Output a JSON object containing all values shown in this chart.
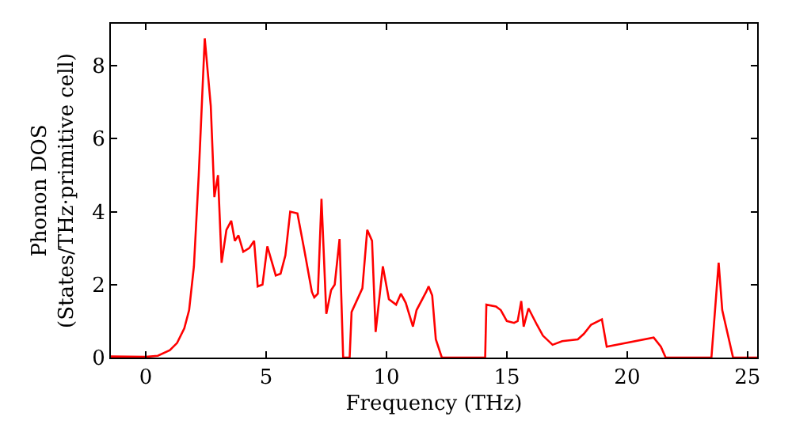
{
  "chart_data": {
    "type": "line",
    "xlabel": "Frequency (THz)",
    "ylabel": "Phonon DOS\n(States/THz·primitive cell)",
    "xlim": [
      -1.45,
      25.4
    ],
    "ylim": [
      0,
      9.15
    ],
    "xticks": [
      0,
      5,
      10,
      15,
      20,
      25
    ],
    "yticks": [
      0,
      2,
      4,
      6,
      8
    ],
    "marker": "none",
    "line_style": "solid",
    "series": [
      {
        "color": "#ff0000",
        "x": [
          -1.45,
          0,
          0.5,
          1,
          1.3,
          1.6,
          1.8,
          2.0,
          2.2,
          2.45,
          2.7,
          2.85,
          3.0,
          3.15,
          3.35,
          3.55,
          3.7,
          3.85,
          4.05,
          4.3,
          4.5,
          4.65,
          4.85,
          5.05,
          5.4,
          5.6,
          5.8,
          6.0,
          6.3,
          6.6,
          6.9,
          7.0,
          7.15,
          7.3,
          7.5,
          7.7,
          7.85,
          8.05,
          8.2,
          8.47,
          8.55,
          9.0,
          9.2,
          9.4,
          9.55,
          9.85,
          10.1,
          10.4,
          10.6,
          10.8,
          11.1,
          11.25,
          11.65,
          11.75,
          11.9,
          12.05,
          12.3,
          14.1,
          14.15,
          14.55,
          14.75,
          15.0,
          15.3,
          15.45,
          15.6,
          15.7,
          15.9,
          16.25,
          16.5,
          16.9,
          17.3,
          17.95,
          18.2,
          18.5,
          18.95,
          19.15,
          21.1,
          21.4,
          21.6,
          23.5,
          23.8,
          23.95,
          24.4,
          25.4
        ],
        "values": [
          0.03,
          0.02,
          0.05,
          0.2,
          0.4,
          0.8,
          1.3,
          2.5,
          5.0,
          8.75,
          6.9,
          4.4,
          5.0,
          2.6,
          3.5,
          3.75,
          3.2,
          3.35,
          2.9,
          3.0,
          3.2,
          1.95,
          2.0,
          3.05,
          2.25,
          2.3,
          2.8,
          4.0,
          3.95,
          2.9,
          1.8,
          1.65,
          1.75,
          4.35,
          1.2,
          1.85,
          2.0,
          3.25,
          0,
          0,
          1.25,
          1.9,
          3.5,
          3.2,
          0.7,
          2.5,
          1.6,
          1.45,
          1.75,
          1.5,
          0.85,
          1.3,
          1.8,
          1.95,
          1.7,
          0.5,
          0,
          0,
          1.45,
          1.4,
          1.3,
          1.0,
          0.95,
          1.0,
          1.55,
          0.85,
          1.35,
          0.9,
          0.6,
          0.35,
          0.45,
          0.5,
          0.65,
          0.9,
          1.05,
          0.3,
          0.55,
          0.3,
          0,
          0,
          2.6,
          1.3,
          0,
          0
        ]
      }
    ]
  }
}
